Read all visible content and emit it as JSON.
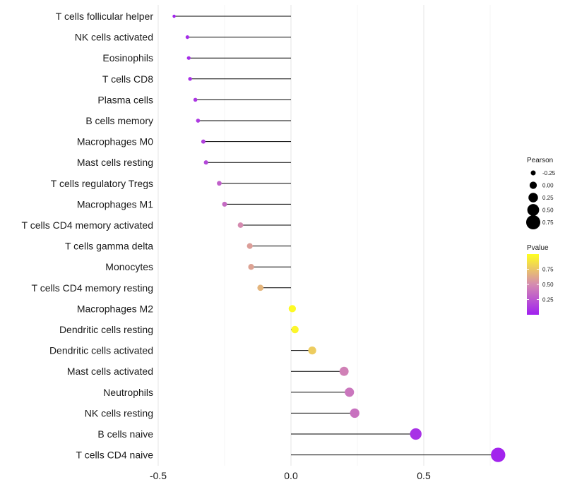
{
  "chart_data": {
    "type": "lollipop",
    "title": "",
    "xlabel": "",
    "ylabel": "",
    "xlim": [
      -0.5,
      0.8
    ],
    "x_ticks": [
      -0.5,
      0.0,
      0.5
    ],
    "x_tick_labels": [
      "-0.5",
      "0.0",
      "0.5"
    ],
    "grid": true,
    "baseline": 0,
    "categories": [
      "T cells follicular helper",
      "NK cells activated",
      "Eosinophils",
      "T cells CD8",
      "Plasma cells",
      "B cells memory",
      "Macrophages M0",
      "Mast cells resting",
      "T cells regulatory  Tregs ",
      "Macrophages M1",
      "T cells CD4 memory activated",
      "T cells gamma delta",
      "Monocytes",
      "T cells CD4 memory resting",
      "Macrophages M2",
      "Dendritic cells resting",
      "Dendritic cells activated",
      "Mast cells activated",
      "Neutrophils",
      "NK cells resting",
      "B cells naive",
      "T cells CD4 naive"
    ],
    "pearson": [
      -0.44,
      -0.39,
      -0.385,
      -0.38,
      -0.36,
      -0.35,
      -0.33,
      -0.32,
      -0.27,
      -0.25,
      -0.19,
      -0.155,
      -0.15,
      -0.115,
      0.005,
      0.015,
      0.08,
      0.2,
      0.22,
      0.24,
      0.47,
      0.78
    ],
    "pvalue": [
      0.02,
      0.05,
      0.06,
      0.07,
      0.1,
      0.12,
      0.15,
      0.18,
      0.3,
      0.35,
      0.5,
      0.58,
      0.6,
      0.68,
      0.98,
      0.96,
      0.78,
      0.45,
      0.4,
      0.38,
      0.08,
      0.02
    ],
    "legend": {
      "position": "right",
      "size": {
        "title": "Pearson",
        "values": [
          -0.25,
          0.0,
          0.25,
          0.5,
          0.75
        ],
        "labels": [
          "-0.25",
          "0.00",
          "0.25",
          "0.50",
          "0.75"
        ]
      },
      "color": {
        "title": "Pvalue",
        "range": [
          0,
          1
        ],
        "ticks": [
          0.25,
          0.5,
          0.75
        ],
        "labels": [
          "0.25",
          "0.50",
          "0.75"
        ],
        "low_color": "#A020F0",
        "mid_color": "#D58BB0",
        "high_color": "#FFFF1F"
      }
    }
  }
}
